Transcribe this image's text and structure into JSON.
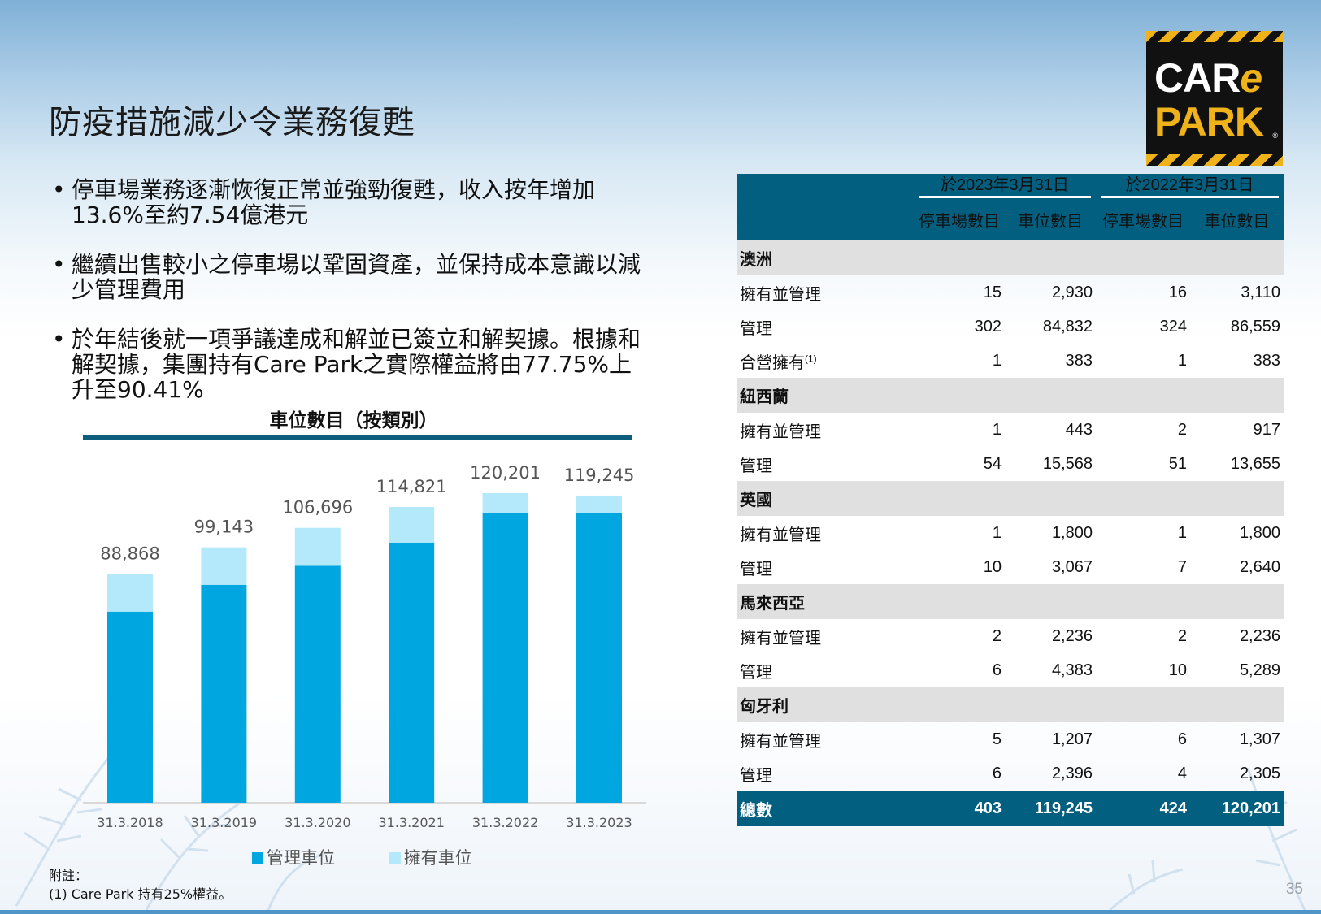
{
  "title": "防疫措施減少令業務復甦",
  "bullets": [
    "停車場業務逐漸恢復正常並強勁復甦，收入按年增加13.6%至約7.54億港元",
    "繼續出售較小之停車場以鞏固資產，並保持成本意識以減少管理費用",
    "於年結後就一項爭議達成和解並已簽立和解契據。根據和解契據，集團持有Care Park之實際權益將由77.75%上升至90.41%"
  ],
  "logo": {
    "line1_prefix": "CAR",
    "line1_e": "e",
    "line2": "PARK",
    "registered": "®"
  },
  "chart_data": {
    "type": "bar",
    "stacked": true,
    "title": "車位數目（按類別）",
    "categories": [
      "31.3.2018",
      "31.3.2019",
      "31.3.2020",
      "31.3.2021",
      "31.3.2022",
      "31.3.2023"
    ],
    "totals": [
      "88,868",
      "99,143",
      "106,696",
      "114,821",
      "120,201",
      "119,245"
    ],
    "series": [
      {
        "name": "管理車位",
        "color": "#00a6df",
        "values": [
          74200,
          84600,
          92000,
          101000,
          112300,
          112300
        ]
      },
      {
        "name": "擁有車位",
        "color": "#b3e9fb",
        "values": [
          14668,
          14543,
          14696,
          13821,
          7901,
          6945
        ]
      }
    ],
    "ylim": [
      0,
      135000
    ],
    "grid": false,
    "legend_position": "bottom"
  },
  "table": {
    "header_dates": [
      "於2023年3月31日",
      "於2022年3月31日"
    ],
    "header_cols": [
      "停車場數目",
      "車位數目",
      "停車場數目",
      "車位數目"
    ],
    "groups": [
      {
        "name": "澳洲",
        "rows": [
          {
            "label": "擁有並管理",
            "values": [
              "15",
              "2,930",
              "16",
              "3,110"
            ]
          },
          {
            "label": "管理",
            "values": [
              "302",
              "84,832",
              "324",
              "86,559"
            ]
          },
          {
            "label": "合營擁有",
            "sup": "(1)",
            "values": [
              "1",
              "383",
              "1",
              "383"
            ]
          }
        ]
      },
      {
        "name": "紐西蘭",
        "rows": [
          {
            "label": "擁有並管理",
            "values": [
              "1",
              "443",
              "2",
              "917"
            ]
          },
          {
            "label": "管理",
            "values": [
              "54",
              "15,568",
              "51",
              "13,655"
            ]
          }
        ]
      },
      {
        "name": "英國",
        "rows": [
          {
            "label": "擁有並管理",
            "values": [
              "1",
              "1,800",
              "1",
              "1,800"
            ]
          },
          {
            "label": "管理",
            "values": [
              "10",
              "3,067",
              "7",
              "2,640"
            ]
          }
        ]
      },
      {
        "name": "馬來西亞",
        "rows": [
          {
            "label": "擁有並管理",
            "values": [
              "2",
              "2,236",
              "2",
              "2,236"
            ]
          },
          {
            "label": "管理",
            "values": [
              "6",
              "4,383",
              "10",
              "5,289"
            ]
          }
        ]
      },
      {
        "name": "匈牙利",
        "rows": [
          {
            "label": "擁有並管理",
            "values": [
              "5",
              "1,207",
              "6",
              "1,307"
            ]
          },
          {
            "label": "管理",
            "values": [
              "6",
              "2,396",
              "4",
              "2,305"
            ]
          }
        ]
      }
    ],
    "total": {
      "label": "總數",
      "values": [
        "403",
        "119,245",
        "424",
        "120,201"
      ]
    }
  },
  "footnote": {
    "heading": "附註：",
    "text": "(1) Care Park 持有25%權益。"
  },
  "page_number": "35"
}
